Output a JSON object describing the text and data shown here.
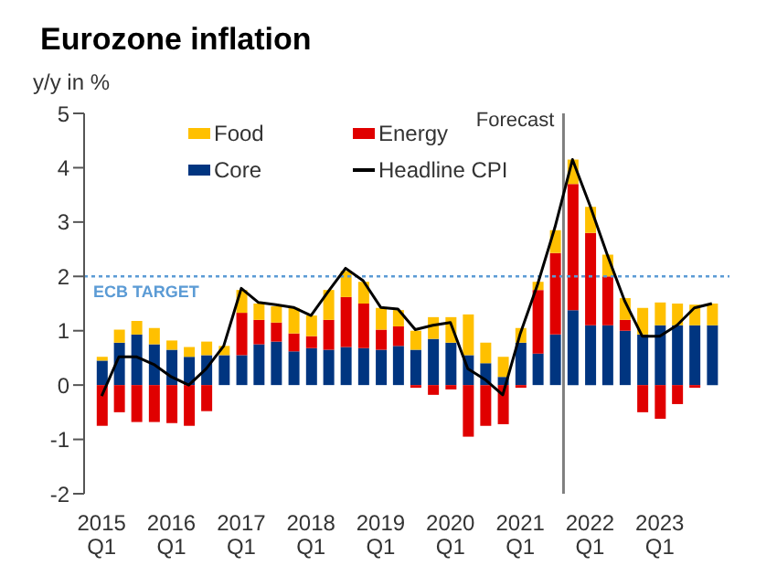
{
  "chart_data": {
    "type": "bar",
    "title": "Eurozone inflation",
    "ylabel": "y/y in %",
    "stacked": true,
    "x": [
      "2015-01",
      "2015-04",
      "2015-07",
      "2015-10",
      "2016-01",
      "2016-04",
      "2016-07",
      "2016-10",
      "2017-01",
      "2017-04",
      "2017-07",
      "2017-10",
      "2018-01",
      "2018-04",
      "2018-07",
      "2018-10",
      "2019-01",
      "2019-04",
      "2019-07",
      "2019-10",
      "2020-01",
      "2020-04",
      "2020-07",
      "2020-10",
      "2021-01",
      "2021-04",
      "2021-07",
      "2021-10",
      "2022-01",
      "2022-04",
      "2022-07",
      "2022-10",
      "2023-01",
      "2023-04",
      "2023-07",
      "2023-10"
    ],
    "xlim": [
      "2014-10",
      "2024-01"
    ],
    "xticks": [
      {
        "value": "2015-01",
        "label": "2015 Q1"
      },
      {
        "value": "2016-01",
        "label": "2016 Q1"
      },
      {
        "value": "2017-01",
        "label": "2017 Q1"
      },
      {
        "value": "2018-01",
        "label": "2018 Q1"
      },
      {
        "value": "2019-01",
        "label": "2019 Q1"
      },
      {
        "value": "2020-01",
        "label": "2020 Q1"
      },
      {
        "value": "2021-01",
        "label": "2021 Q1"
      },
      {
        "value": "2022-01",
        "label": "2022 Q1"
      },
      {
        "value": "2023-01",
        "label": "2023 Q1"
      }
    ],
    "ylim": [
      -2,
      5
    ],
    "yticks": [
      -2,
      -1,
      0,
      1,
      2,
      3,
      4,
      5
    ],
    "series": [
      {
        "name": "Core",
        "color": "#003580",
        "values": [
          0.45,
          0.78,
          0.93,
          0.75,
          0.65,
          0.52,
          0.55,
          0.55,
          0.55,
          0.75,
          0.8,
          0.62,
          0.68,
          0.65,
          0.7,
          0.68,
          0.65,
          0.72,
          0.65,
          0.85,
          0.78,
          0.55,
          0.4,
          0.15,
          0.78,
          0.58,
          0.93,
          1.38,
          1.1,
          1.1,
          1.0,
          0.93,
          1.1,
          1.1,
          1.1,
          1.1
        ]
      },
      {
        "name": "Energy",
        "color": "#e00000",
        "values": [
          -0.75,
          -0.5,
          -0.68,
          -0.68,
          -0.7,
          -0.75,
          -0.48,
          0,
          0.78,
          0.45,
          0.35,
          0.33,
          0.22,
          0.55,
          0.92,
          0.82,
          0.37,
          0.36,
          -0.05,
          -0.18,
          -0.08,
          -0.95,
          -0.75,
          -0.72,
          -0.05,
          1.17,
          1.5,
          2.32,
          1.7,
          0.9,
          0.2,
          -0.5,
          -0.62,
          -0.35,
          -0.05,
          0
        ]
      },
      {
        "name": "Food",
        "color": "#ffc000",
        "values": [
          0.07,
          0.24,
          0.25,
          0.3,
          0.17,
          0.18,
          0.25,
          0.17,
          0.42,
          0.3,
          0.3,
          0.47,
          0.38,
          0.55,
          0.48,
          0.4,
          0.4,
          0.3,
          0.35,
          0.4,
          0.47,
          0.75,
          0.38,
          0.37,
          0.27,
          0.15,
          0.42,
          0.45,
          0.48,
          0.4,
          0.4,
          0.49,
          0.42,
          0.4,
          0.38,
          0.4
        ]
      },
      {
        "name": "Headline CPI",
        "type": "line",
        "color": "#000000",
        "values": [
          -0.2,
          0.52,
          0.52,
          0.38,
          0.15,
          0.0,
          0.3,
          0.72,
          1.78,
          1.52,
          1.48,
          1.43,
          1.28,
          1.72,
          2.15,
          1.92,
          1.43,
          1.4,
          1.02,
          1.1,
          1.15,
          0.3,
          0.1,
          -0.18,
          0.95,
          1.85,
          2.9,
          4.15,
          3.3,
          2.4,
          1.55,
          0.9,
          0.9,
          1.1,
          1.42,
          1.5
        ]
      }
    ],
    "ref_lines": [
      {
        "axis": "y",
        "value": 2,
        "label": "ECB TARGET",
        "color": "#5b9bd5",
        "line_style": "dotted"
      },
      {
        "axis": "x",
        "value": "2021-08-15",
        "label": "Forecast",
        "color": "#7f7f7f",
        "line_style": "solid"
      }
    ],
    "legend": "top left",
    "grid": false,
    "marker": "none",
    "line_style": "solid"
  }
}
